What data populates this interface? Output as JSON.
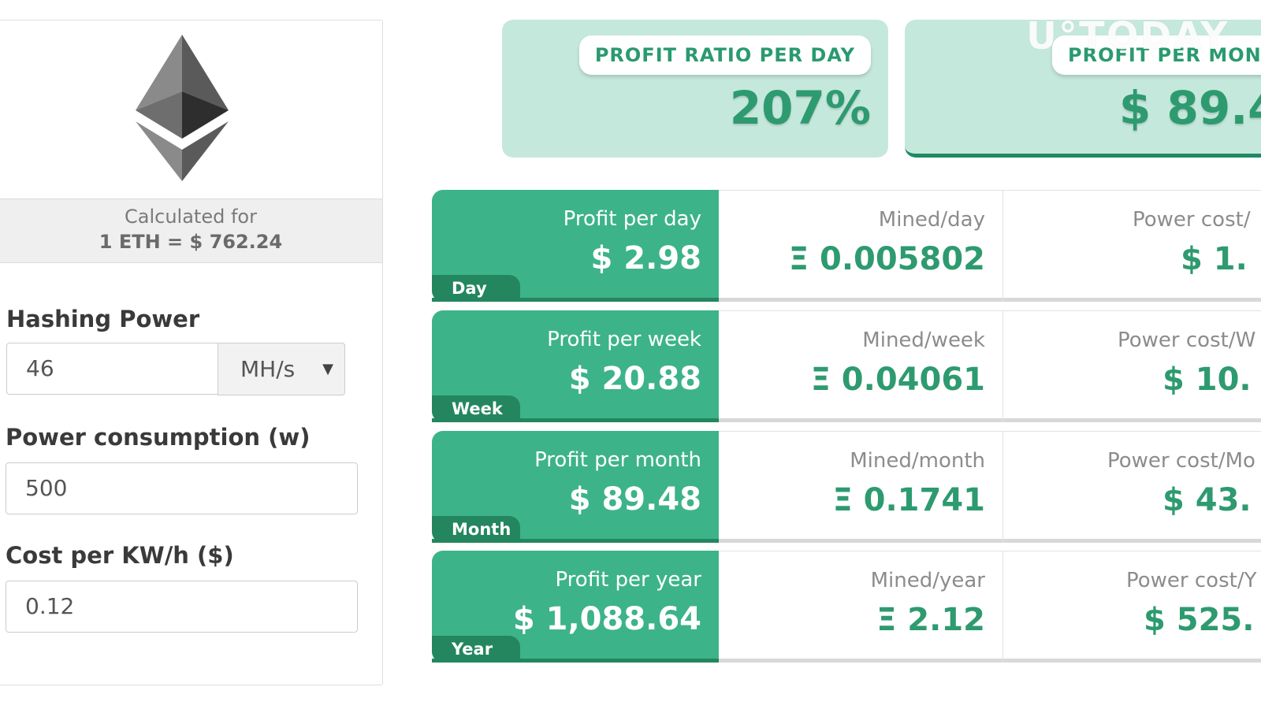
{
  "watermark": "U°TODAY",
  "left": {
    "logo": "ethereum-logo",
    "calculated_label": "Calculated for",
    "rate": "1 ETH = $ 762.24",
    "hashing_label": "Hashing Power",
    "hashing_value": "46",
    "hashing_unit": "MH/s",
    "power_label": "Power consumption (w)",
    "power_value": "500",
    "cost_label": "Cost per KW/h ($)",
    "cost_value": "0.12"
  },
  "summary": [
    {
      "label": "PROFIT RATIO PER DAY",
      "value": "207%"
    },
    {
      "label": "PROFIT PER MONT",
      "value": "$ 89.4"
    }
  ],
  "rows": [
    {
      "period": "Day",
      "profit_label": "Profit per day",
      "profit_value": "$ 2.98",
      "mined_label": "Mined/day",
      "mined_value": "Ξ 0.005802",
      "power_label": "Power cost/",
      "power_value": "$ 1."
    },
    {
      "period": "Week",
      "profit_label": "Profit per week",
      "profit_value": "$ 20.88",
      "mined_label": "Mined/week",
      "mined_value": "Ξ 0.04061",
      "power_label": "Power cost/W",
      "power_value": "$ 10."
    },
    {
      "period": "Month",
      "profit_label": "Profit per month",
      "profit_value": "$ 89.48",
      "mined_label": "Mined/month",
      "mined_value": "Ξ 0.1741",
      "power_label": "Power cost/Mo",
      "power_value": "$ 43."
    },
    {
      "period": "Year",
      "profit_label": "Profit per year",
      "profit_value": "$ 1,088.64",
      "mined_label": "Mined/year",
      "mined_value": "Ξ 2.12",
      "power_label": "Power cost/Y",
      "power_value": "$ 525."
    }
  ],
  "colors": {
    "green": "#3db38a",
    "dark_green": "#23865f",
    "card_bg": "#c5e8dc",
    "value_green": "#2e9a70"
  }
}
